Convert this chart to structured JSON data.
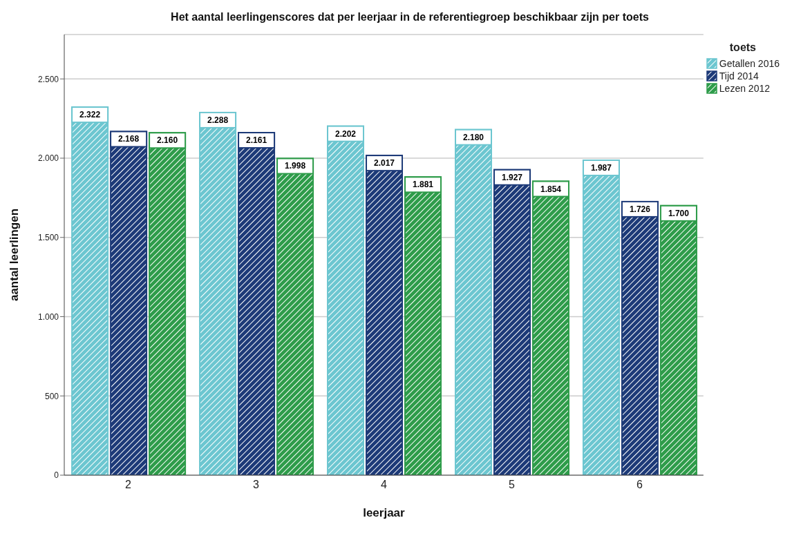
{
  "chart_data": {
    "type": "bar",
    "title": "Het aantal leerlingenscores dat per leerjaar in de referentiegroep beschikbaar zijn per toets",
    "xlabel": "leerjaar",
    "ylabel": "aantal leerlingen",
    "legend_title": "toets",
    "categories": [
      "2",
      "3",
      "4",
      "5",
      "6"
    ],
    "series": [
      {
        "name": "Getallen 2016",
        "color": "#6cc6d0",
        "values": [
          2322,
          2288,
          2202,
          2180,
          1987
        ],
        "value_labels": [
          "2.322",
          "2.288",
          "2.202",
          "2.180",
          "1.987"
        ]
      },
      {
        "name": "Tijd 2014",
        "color": "#1d3a78",
        "values": [
          2168,
          2161,
          2017,
          1927,
          1726
        ],
        "value_labels": [
          "2.168",
          "2.161",
          "2.017",
          "1.927",
          "1.726"
        ]
      },
      {
        "name": "Lezen 2012",
        "color": "#2e9c4a",
        "values": [
          2160,
          1998,
          1881,
          1854,
          1700
        ],
        "value_labels": [
          "2.160",
          "1.998",
          "1.881",
          "1.854",
          "1.700"
        ]
      }
    ],
    "ylim": [
      0,
      2780
    ],
    "yticks": [
      0,
      {
        "value": 500,
        "label": "500"
      },
      {
        "value": 1000,
        "label": "1.000"
      },
      {
        "value": 1500,
        "label": "1.500"
      },
      {
        "value": 2000,
        "label": "2.000"
      },
      {
        "value": 2500,
        "label": "2.500"
      }
    ],
    "grid": "y",
    "legend": "top right"
  }
}
